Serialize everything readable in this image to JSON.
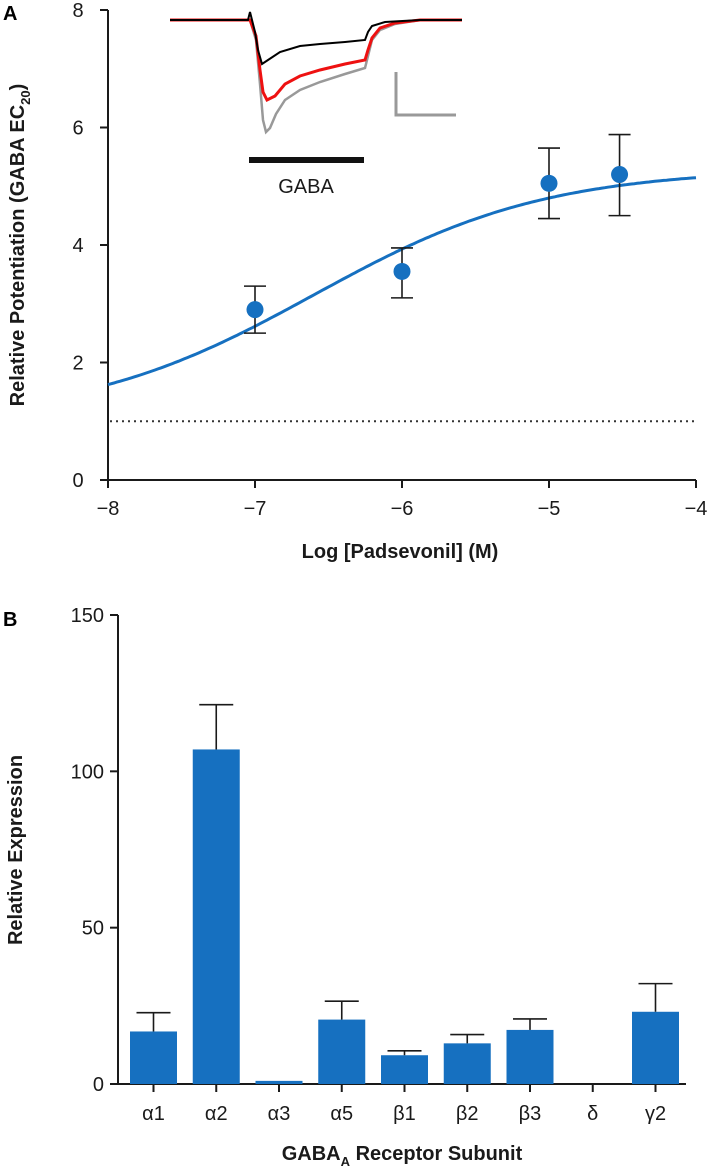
{
  "chart_data": [
    {
      "panel": "A",
      "type": "scatter",
      "xlabel": "Log [Padsevonil] (M)",
      "ylabel_main": "Relative Potentiation (GABA EC",
      "ylabel_sub": "20",
      "ylabel_end": ")",
      "xlim": [
        -8,
        -4
      ],
      "ylim": [
        0,
        8
      ],
      "xticks": [
        -8,
        -7,
        -6,
        -5,
        -4
      ],
      "yticks": [
        0,
        2,
        4,
        6,
        8
      ],
      "xtick_labels": [
        "−8",
        "−7",
        "−6",
        "−5",
        "−4"
      ],
      "ytick_labels": [
        "0",
        "2",
        "4",
        "6",
        "8"
      ],
      "points": [
        {
          "x": -7.0,
          "y": 2.9,
          "err_lo": 2.5,
          "err_hi": 3.3
        },
        {
          "x": -6.0,
          "y": 3.55,
          "err_lo": 3.1,
          "err_hi": 3.95
        },
        {
          "x": -5.0,
          "y": 5.05,
          "err_lo": 4.45,
          "err_hi": 5.65
        },
        {
          "x": -4.52,
          "y": 5.2,
          "err_lo": 4.5,
          "err_hi": 5.88
        }
      ],
      "fit": {
        "bottom": 1.0,
        "top": 5.3,
        "logEC50": -6.6,
        "hill": 0.55
      },
      "baseline": 1.0,
      "inset": {
        "label": "GABA",
        "trace_colors": [
          "#999999",
          "#000000",
          "#ee1111"
        ],
        "scale_bar_color": "#999999"
      },
      "colors": {
        "points": "#1670c0",
        "fit": "#1670c0",
        "axis": "#1a1a1a"
      }
    },
    {
      "panel": "B",
      "type": "bar",
      "xlabel_main": "GABA",
      "xlabel_sub": "A",
      "xlabel_end": " Receptor Subunit",
      "ylabel": "Relative Expression",
      "ylim": [
        0,
        150
      ],
      "yticks": [
        0,
        50,
        100,
        150
      ],
      "ytick_labels": [
        "0",
        "50",
        "100",
        "150"
      ],
      "categories": [
        "α1",
        "α2",
        "α3",
        "α5",
        "β1",
        "β2",
        "β3",
        "δ",
        "γ2"
      ],
      "values": [
        16.8,
        107,
        1,
        20.6,
        9.2,
        13,
        17.3,
        0,
        23.1
      ],
      "errors_upper": [
        22.8,
        121.3,
        1,
        26.5,
        10.6,
        15.8,
        20.8,
        0,
        32.1
      ],
      "colors": {
        "bars": "#1670c0",
        "axis": "#1a1a1a"
      }
    }
  ]
}
